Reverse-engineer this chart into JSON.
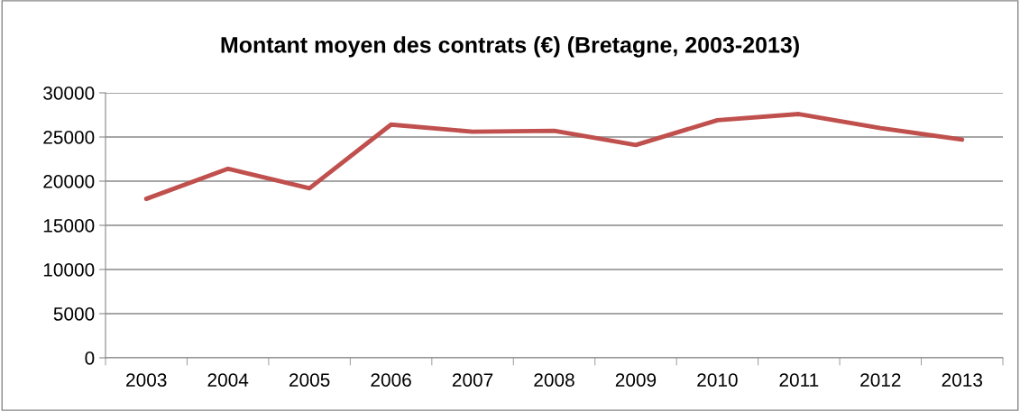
{
  "chart_data": {
    "type": "line",
    "title": "Montant moyen des contrats (€) (Bretagne, 2003-2013)",
    "categories": [
      "2003",
      "2004",
      "2005",
      "2006",
      "2007",
      "2008",
      "2009",
      "2010",
      "2011",
      "2012",
      "2013"
    ],
    "series": [
      {
        "color": "#c0504d",
        "values": [
          18000,
          21400,
          19200,
          26400,
          25600,
          25700,
          24100,
          26900,
          27600,
          26000,
          24700
        ]
      }
    ],
    "ylim": [
      0,
      30000
    ],
    "yticks": [
      0,
      5000,
      10000,
      15000,
      20000,
      25000,
      30000
    ],
    "grid": "y",
    "marker": "none",
    "line_style": "solid"
  }
}
